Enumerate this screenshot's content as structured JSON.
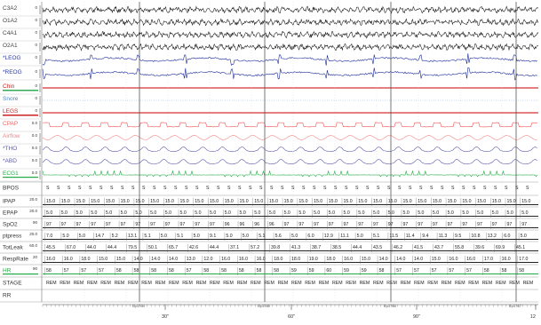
{
  "colors": {
    "eeg": "#111111",
    "eog": "#1a2a9a",
    "emg": "#cc2222",
    "snore": "#4a88cc",
    "leg": "#cc2222",
    "cpap": "#ee5555",
    "flow": "#ee8888",
    "effort": "#5a5aaa",
    "ecg": "#22aa44",
    "hr": "#229944",
    "grid": "#999999",
    "epoch": "#555555"
  },
  "channels": [
    {
      "name": "C3A2",
      "scale": "0",
      "color": "#444444",
      "kind": "eeg"
    },
    {
      "name": "O1A2",
      "scale": "0",
      "color": "#444444",
      "kind": "eeg"
    },
    {
      "name": "C4A1",
      "scale": "0",
      "color": "#444444",
      "kind": "eeg"
    },
    {
      "name": "O2A1",
      "scale": "0",
      "color": "#444444",
      "kind": "eeg"
    },
    {
      "name": "*LEOG",
      "scale": "0",
      "color": "#2a3aaa",
      "kind": "eog"
    },
    {
      "name": "*REOG",
      "scale": "0",
      "color": "#2a3aaa",
      "kind": "eog"
    },
    {
      "name": "Chin",
      "scale": "0",
      "color": "#cc2222",
      "kind": "emg"
    },
    {
      "name": "Snore",
      "scale": "0",
      "color": "#4a88cc",
      "kind": "snore"
    },
    {
      "name": "LEGS",
      "scale": "0",
      "color": "#cc2222",
      "kind": "leg"
    },
    {
      "name": "CPAP",
      "scale": "0.0",
      "color": "#ee6666",
      "kind": "cpap"
    },
    {
      "name": "Airflow",
      "scale": "0.0",
      "color": "#ee8888",
      "kind": "flow"
    },
    {
      "name": "*THO",
      "scale": "0.0",
      "color": "#5a5aaa",
      "kind": "effort"
    },
    {
      "name": "*ABD",
      "scale": "0.0",
      "color": "#5a5aaa",
      "kind": "effort"
    },
    {
      "name": "ECG1",
      "scale": "0.0",
      "color": "#22aa44",
      "kind": "ecg"
    }
  ],
  "numeric_rows": [
    {
      "name": "BPOS",
      "scale": "",
      "color": "#333333",
      "values": [
        "S",
        "S",
        "S",
        "S",
        "S",
        "S",
        "S",
        "S",
        "S",
        "S",
        "S",
        "S",
        "S",
        "S",
        "S",
        "S",
        "S",
        "S",
        "S",
        "S",
        "S",
        "S",
        "S",
        "S",
        "S",
        "S",
        "S",
        "S",
        "S",
        "S",
        "S",
        "S",
        "S",
        "S",
        "S",
        "S",
        "S",
        "S",
        "S",
        "S",
        "S",
        "S",
        "S",
        "S",
        "S",
        "S"
      ]
    },
    {
      "name": "IPAP",
      "scale": "20.0",
      "color": "#333333",
      "values": [
        "15.0",
        "15.0",
        "15.0",
        "15.0",
        "15.0",
        "15.0",
        "15.0",
        "15.0",
        "15.0",
        "15.0",
        "15.0",
        "15.0",
        "15.0",
        "15.0",
        "15.0",
        "15.0",
        "15.0",
        "15.0",
        "15.0",
        "15.0",
        "15.0",
        "15.0",
        "15.0",
        "15.0",
        "15.0",
        "15.0",
        "15.0",
        "15.0",
        "15.0",
        "15.0",
        "15.0",
        "15.0",
        "15.0"
      ]
    },
    {
      "name": "EPAP",
      "scale": "20.0",
      "color": "#333333",
      "values": [
        "5.0",
        "5.0",
        "5.0",
        "5.0",
        "5.0",
        "5.0",
        "5.0",
        "5.0",
        "5.0",
        "5.0",
        "5.0",
        "5.0",
        "5.0",
        "5.0",
        "5.0",
        "5.0",
        "5.0",
        "5.0",
        "5.0",
        "5.0",
        "5.0",
        "5.0",
        "5.0",
        "5.0",
        "5.0",
        "5.0",
        "5.0",
        "5.0",
        "5.0",
        "5.0",
        "5.0",
        "5.0",
        "5.0"
      ]
    },
    {
      "name": "SpO2",
      "scale": "90",
      "color": "#333333",
      "values": [
        "97",
        "97",
        "97",
        "97",
        "97",
        "97",
        "97",
        "97",
        "97",
        "97",
        "97",
        "97",
        "96",
        "96",
        "96",
        "96",
        "97",
        "97",
        "97",
        "97",
        "97",
        "97",
        "97",
        "97",
        "97",
        "97",
        "97",
        "97",
        "97",
        "97",
        "97",
        "97",
        "97"
      ]
    },
    {
      "name": "ptpress",
      "scale": "20.0",
      "color": "#333333",
      "values": [
        "7.0",
        "5.0",
        "5.0",
        "14.7",
        "5.2",
        "13.1",
        "5.1",
        "5.0",
        "5.1",
        "5.0",
        "9.1",
        "5.0",
        "5.0",
        "5.1",
        "5.6",
        "5.0",
        "6.0",
        "12.9",
        "11.1",
        "5.0",
        "5.1",
        "11.5",
        "11.4",
        "9.4",
        "11.3",
        "9.5",
        "10.8",
        "13.2",
        "6.0",
        "5.0"
      ]
    },
    {
      "name": "TotLeak",
      "scale": "60.0",
      "color": "#333333",
      "values": [
        "45.5",
        "67.0",
        "44.0",
        "44.4",
        "79.5",
        "50.1",
        "65.7",
        "42.6",
        "44.4",
        "37.1",
        "57.2",
        "39.8",
        "41.3",
        "38.7",
        "38.5",
        "44.4",
        "43.5",
        "46.2",
        "41.5",
        "43.7",
        "55.8",
        "39.6",
        "69.9",
        "45.1"
      ]
    },
    {
      "name": "RespRate",
      "scale": "20",
      "color": "#333333",
      "values": [
        "16.0",
        "16.0",
        "18.0",
        "15.0",
        "15.0",
        "14.0",
        "14.0",
        "14.0",
        "13.0",
        "12.0",
        "16.0",
        "16.0",
        "16.0",
        "18.0",
        "18.0",
        "19.0",
        "18.0",
        "16.0",
        "15.0",
        "14.0",
        "14.0",
        "14.0",
        "15.0",
        "16.0",
        "16.0",
        "17.0",
        "16.0",
        "17.0"
      ]
    },
    {
      "name": "HR",
      "scale": "90",
      "color": "#22aa44",
      "values": [
        "58",
        "57",
        "57",
        "57",
        "58",
        "58",
        "58",
        "58",
        "57",
        "58",
        "58",
        "58",
        "58",
        "58",
        "59",
        "59",
        "60",
        "59",
        "59",
        "58",
        "57",
        "57",
        "57",
        "57",
        "57",
        "58",
        "58",
        "58"
      ]
    },
    {
      "name": "STAGE",
      "scale": "",
      "color": "#333333",
      "values": [
        "REM",
        "REM",
        "REM",
        "REM",
        "REM",
        "REM",
        "REM",
        "REM",
        "REM",
        "REM",
        "REM",
        "REM",
        "REM",
        "REM",
        "REM",
        "REM",
        "REM",
        "REM",
        "REM",
        "REM",
        "REM",
        "REM",
        "REM",
        "REM",
        "REM",
        "REM",
        "REM",
        "REM",
        "REM",
        "REM",
        "REM",
        "REM",
        "REM",
        "REM",
        "REM",
        "REM"
      ]
    },
    {
      "name": "RR",
      "scale": "",
      "color": "#333333",
      "values": []
    }
  ],
  "time_axis": {
    "ticks": [
      "30\"",
      "60\"",
      "90\"",
      "12"
    ],
    "epoch_markers": [
      "Ep1764",
      "Ep1765",
      "Ep1766",
      "Ep1767"
    ]
  }
}
